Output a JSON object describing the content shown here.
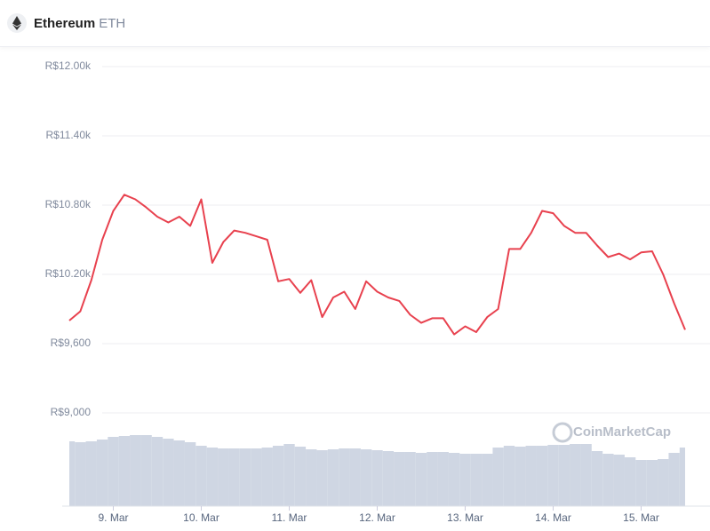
{
  "header": {
    "title": "Ethereum",
    "symbol": "ETH"
  },
  "chart_data": {
    "type": "line",
    "categories": [
      null,
      null,
      null,
      null,
      "9. Mar",
      null,
      null,
      null,
      null,
      null,
      null,
      null,
      "10. Mar",
      null,
      null,
      null,
      null,
      null,
      null,
      null,
      "11. Mar",
      null,
      null,
      null,
      null,
      null,
      null,
      null,
      "12. Mar",
      null,
      null,
      null,
      null,
      null,
      null,
      null,
      "13. Mar",
      null,
      null,
      null,
      null,
      null,
      null,
      null,
      "14. Mar",
      null,
      null,
      null,
      null,
      null,
      null,
      null,
      "15. Mar",
      null,
      null,
      null,
      null
    ],
    "series": [
      {
        "color": "#e8414e",
        "values": [
          9800,
          9880,
          10150,
          10500,
          10750,
          10890,
          10850,
          10780,
          10700,
          10650,
          10700,
          10620,
          10850,
          10300,
          10480,
          10580,
          10560,
          10530,
          10500,
          10140,
          10160,
          10040,
          10150,
          9830,
          10000,
          10050,
          9900,
          10140,
          10050,
          10000,
          9970,
          9850,
          9780,
          9820,
          9820,
          9680,
          9750,
          9700,
          9830,
          9900,
          10420,
          10420,
          10560,
          10750,
          10730,
          10620,
          10560,
          10560,
          10450,
          10350,
          10380,
          10330,
          10390,
          10400,
          10200,
          9950,
          9720
        ]
      }
    ],
    "volume": {
      "color": "#cfd6e3",
      "ylim": [
        0,
        100
      ],
      "values": [
        73,
        72,
        73,
        75,
        78,
        79,
        80,
        80,
        78,
        76,
        74,
        72,
        68,
        66,
        65,
        65,
        65,
        65,
        66,
        68,
        70,
        67,
        64,
        63,
        64,
        65,
        65,
        64,
        63,
        62,
        61,
        61,
        60,
        61,
        61,
        60,
        59,
        59,
        59,
        66,
        68,
        67,
        68,
        68,
        69,
        69,
        70,
        70,
        62,
        59,
        58,
        55,
        52,
        52,
        53,
        60,
        66
      ]
    },
    "ylim": [
      9000,
      12000
    ],
    "yticks": [
      {
        "value": 9000,
        "label": "R$9,000"
      },
      {
        "value": 9600,
        "label": "R$9,600"
      },
      {
        "value": 10200,
        "label": "R$10.20k"
      },
      {
        "value": 10800,
        "label": "R$10.80k"
      },
      {
        "value": 11400,
        "label": "R$11.40k"
      },
      {
        "value": 12000,
        "label": "R$12.00k"
      }
    ],
    "grid": true,
    "watermark": "CoinMarketCap"
  }
}
